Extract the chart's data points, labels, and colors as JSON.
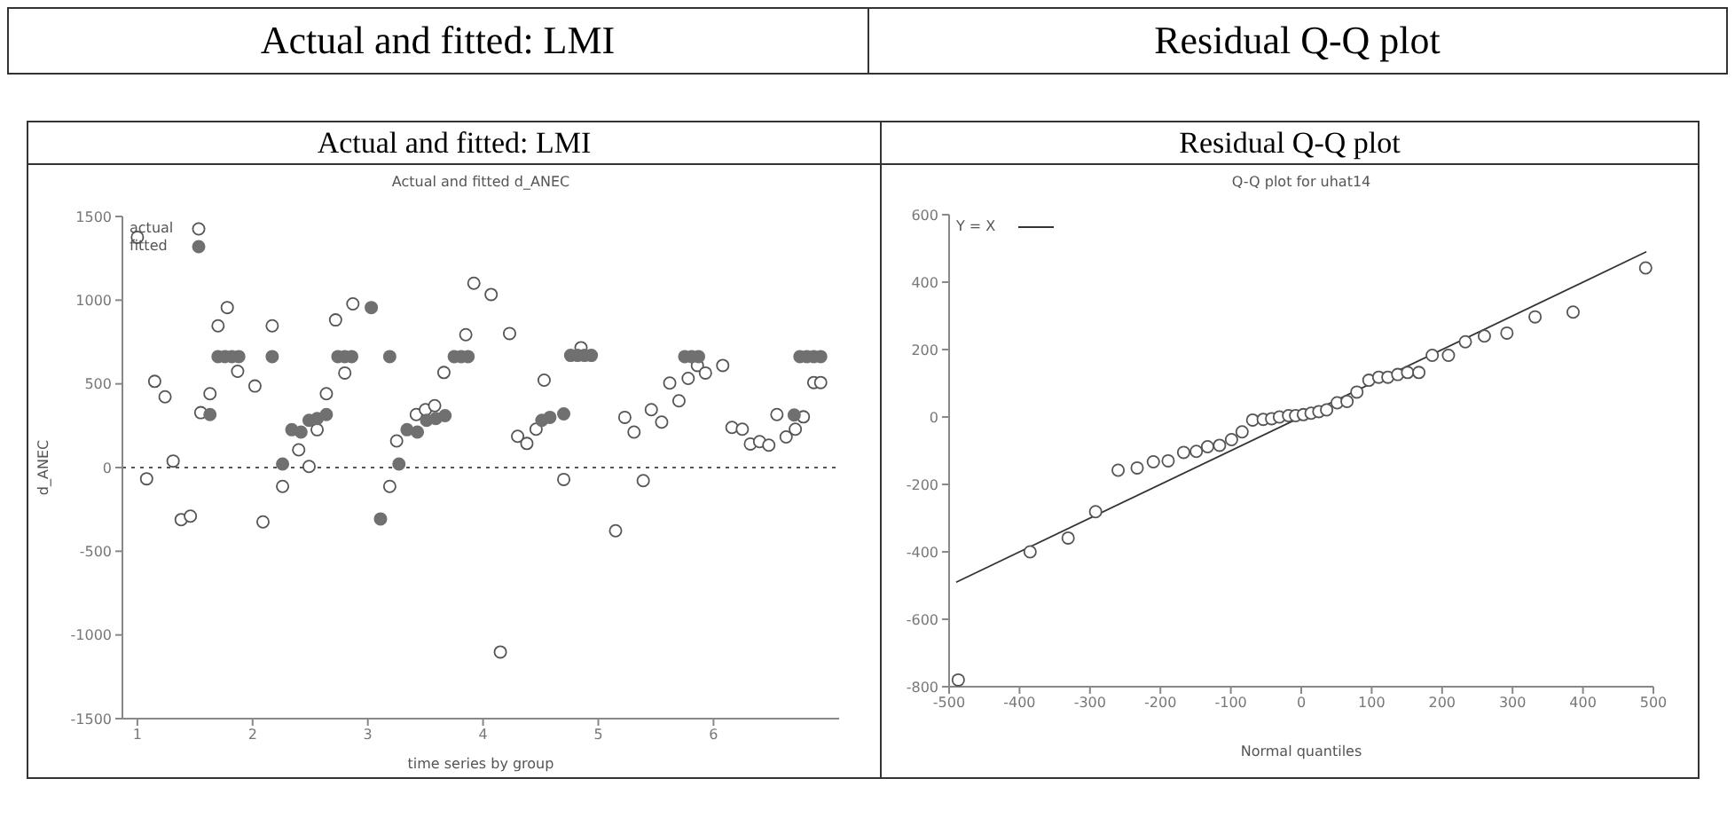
{
  "chart_data": [
    {
      "type": "scatter",
      "title": "Actual and fitted: LMI",
      "subtitle": "Actual and fitted d_ANEC",
      "xlabel": "time series by group",
      "ylabel": "d_ANEC",
      "xlim": [
        0.87,
        7.09
      ],
      "xticks": [
        1,
        2,
        3,
        4,
        5,
        6
      ],
      "ylim": [
        -1500,
        1500
      ],
      "yticks": [
        -1500,
        -1000,
        -500,
        0,
        500,
        1000,
        1500
      ],
      "grid": false,
      "legend": "top left",
      "marker": "circle",
      "annotations": [
        "Actual and fitted: LMI"
      ],
      "ref_lines": [
        {
          "axis": "y",
          "value": 0,
          "line_style": "dotted",
          "color": "#555555"
        }
      ],
      "series": [
        {
          "name": "actual",
          "color": "#555555",
          "x": [
            1.0,
            1.08,
            1.15,
            1.24,
            1.31,
            1.38,
            1.46,
            1.55,
            1.63,
            1.7,
            1.78,
            1.87,
            2.02,
            2.09,
            2.17,
            2.26,
            2.4,
            2.49,
            2.56,
            2.64,
            2.72,
            2.8,
            2.87,
            3.19,
            3.25,
            3.42,
            3.5,
            3.58,
            3.66,
            3.85,
            3.92,
            4.07,
            4.15,
            4.23,
            4.3,
            4.38,
            4.46,
            4.53,
            4.7,
            4.85,
            5.15,
            5.23,
            5.31,
            5.39,
            5.46,
            5.55,
            5.62,
            5.7,
            5.78,
            5.86,
            5.93,
            6.08,
            6.16,
            6.25,
            6.32,
            6.4,
            6.48,
            6.55,
            6.63,
            6.71,
            6.78,
            6.87,
            6.93
          ],
          "values": [
            1376,
            -67,
            515,
            423,
            39,
            -311,
            -290,
            328,
            441,
            847,
            956,
            575,
            487,
            -325,
            847,
            -113,
            106,
            7,
            226,
            441,
            882,
            565,
            978,
            -113,
            159,
            317,
            346,
            370,
            568,
            794,
            1101,
            1034,
            -1102,
            801,
            187,
            144,
            229,
            522,
            -71,
            716,
            -378,
            300,
            212,
            -78,
            346,
            272,
            505,
            399,
            533,
            610,
            565,
            610,
            240,
            229,
            141,
            155,
            134,
            317,
            183,
            229,
            303,
            508,
            508
          ]
        },
        {
          "name": "fitted",
          "color": "#707070",
          "x": [
            1.63,
            1.7,
            1.76,
            1.82,
            1.88,
            2.17,
            2.26,
            2.34,
            2.42,
            2.49,
            2.56,
            2.64,
            2.74,
            2.8,
            2.86,
            3.03,
            3.11,
            3.19,
            3.27,
            3.34,
            3.43,
            3.51,
            3.59,
            3.67,
            3.75,
            3.81,
            3.87,
            4.51,
            4.58,
            4.7,
            4.76,
            4.82,
            4.88,
            4.94,
            5.75,
            5.81,
            5.87,
            6.7,
            6.75,
            6.81,
            6.87,
            6.93
          ],
          "values": [
            317,
            663,
            663,
            663,
            663,
            663,
            21,
            226,
            212,
            282,
            293,
            317,
            663,
            663,
            663,
            956,
            -307,
            663,
            21,
            226,
            212,
            282,
            293,
            310,
            663,
            663,
            663,
            282,
            300,
            321,
            670,
            670,
            670,
            670,
            663,
            663,
            663,
            314,
            663,
            663,
            663,
            663
          ]
        }
      ]
    },
    {
      "type": "scatter",
      "title": "Residual Q-Q plot",
      "subtitle": "Q-Q plot for uhat14",
      "xlabel": "Normal quantiles",
      "xlim": [
        -500,
        500
      ],
      "xticks": [
        -500,
        -400,
        -300,
        -200,
        -100,
        0,
        100,
        200,
        300,
        400,
        500
      ],
      "ylim": [
        -800,
        600
      ],
      "yticks": [
        -800,
        -600,
        -400,
        -200,
        0,
        200,
        400,
        600
      ],
      "grid": false,
      "legend": "top left",
      "marker": "circle",
      "annotations": [
        "Residual Q-Q plot"
      ],
      "series": [
        {
          "color": "#555555",
          "x": [
            -487,
            -385,
            -331,
            -292,
            -260,
            -233,
            -210,
            -189,
            -167,
            -149,
            -133,
            -116,
            -99,
            -84,
            -69,
            -54,
            -42,
            -31,
            -18,
            -8,
            3,
            14,
            25,
            36,
            51,
            65,
            79,
            96,
            110,
            123,
            137,
            151,
            167,
            186,
            209,
            233,
            260,
            292,
            332,
            386,
            489
          ],
          "values": [
            -780,
            -400,
            -359,
            -281,
            -158,
            -151,
            -133,
            -130,
            -105,
            -102,
            -88,
            -84,
            -67,
            -44,
            -9,
            -7,
            -5,
            0,
            4,
            4,
            7,
            11,
            16,
            21,
            42,
            46,
            74,
            109,
            118,
            118,
            126,
            132,
            132,
            183,
            183,
            223,
            240,
            249,
            297,
            311,
            442
          ]
        },
        {
          "type": "line",
          "name": "Y = X",
          "color": "#333333",
          "line_style": "solid",
          "marker": "none",
          "x": [
            -490,
            490
          ],
          "values": [
            -490,
            490
          ]
        }
      ]
    }
  ]
}
